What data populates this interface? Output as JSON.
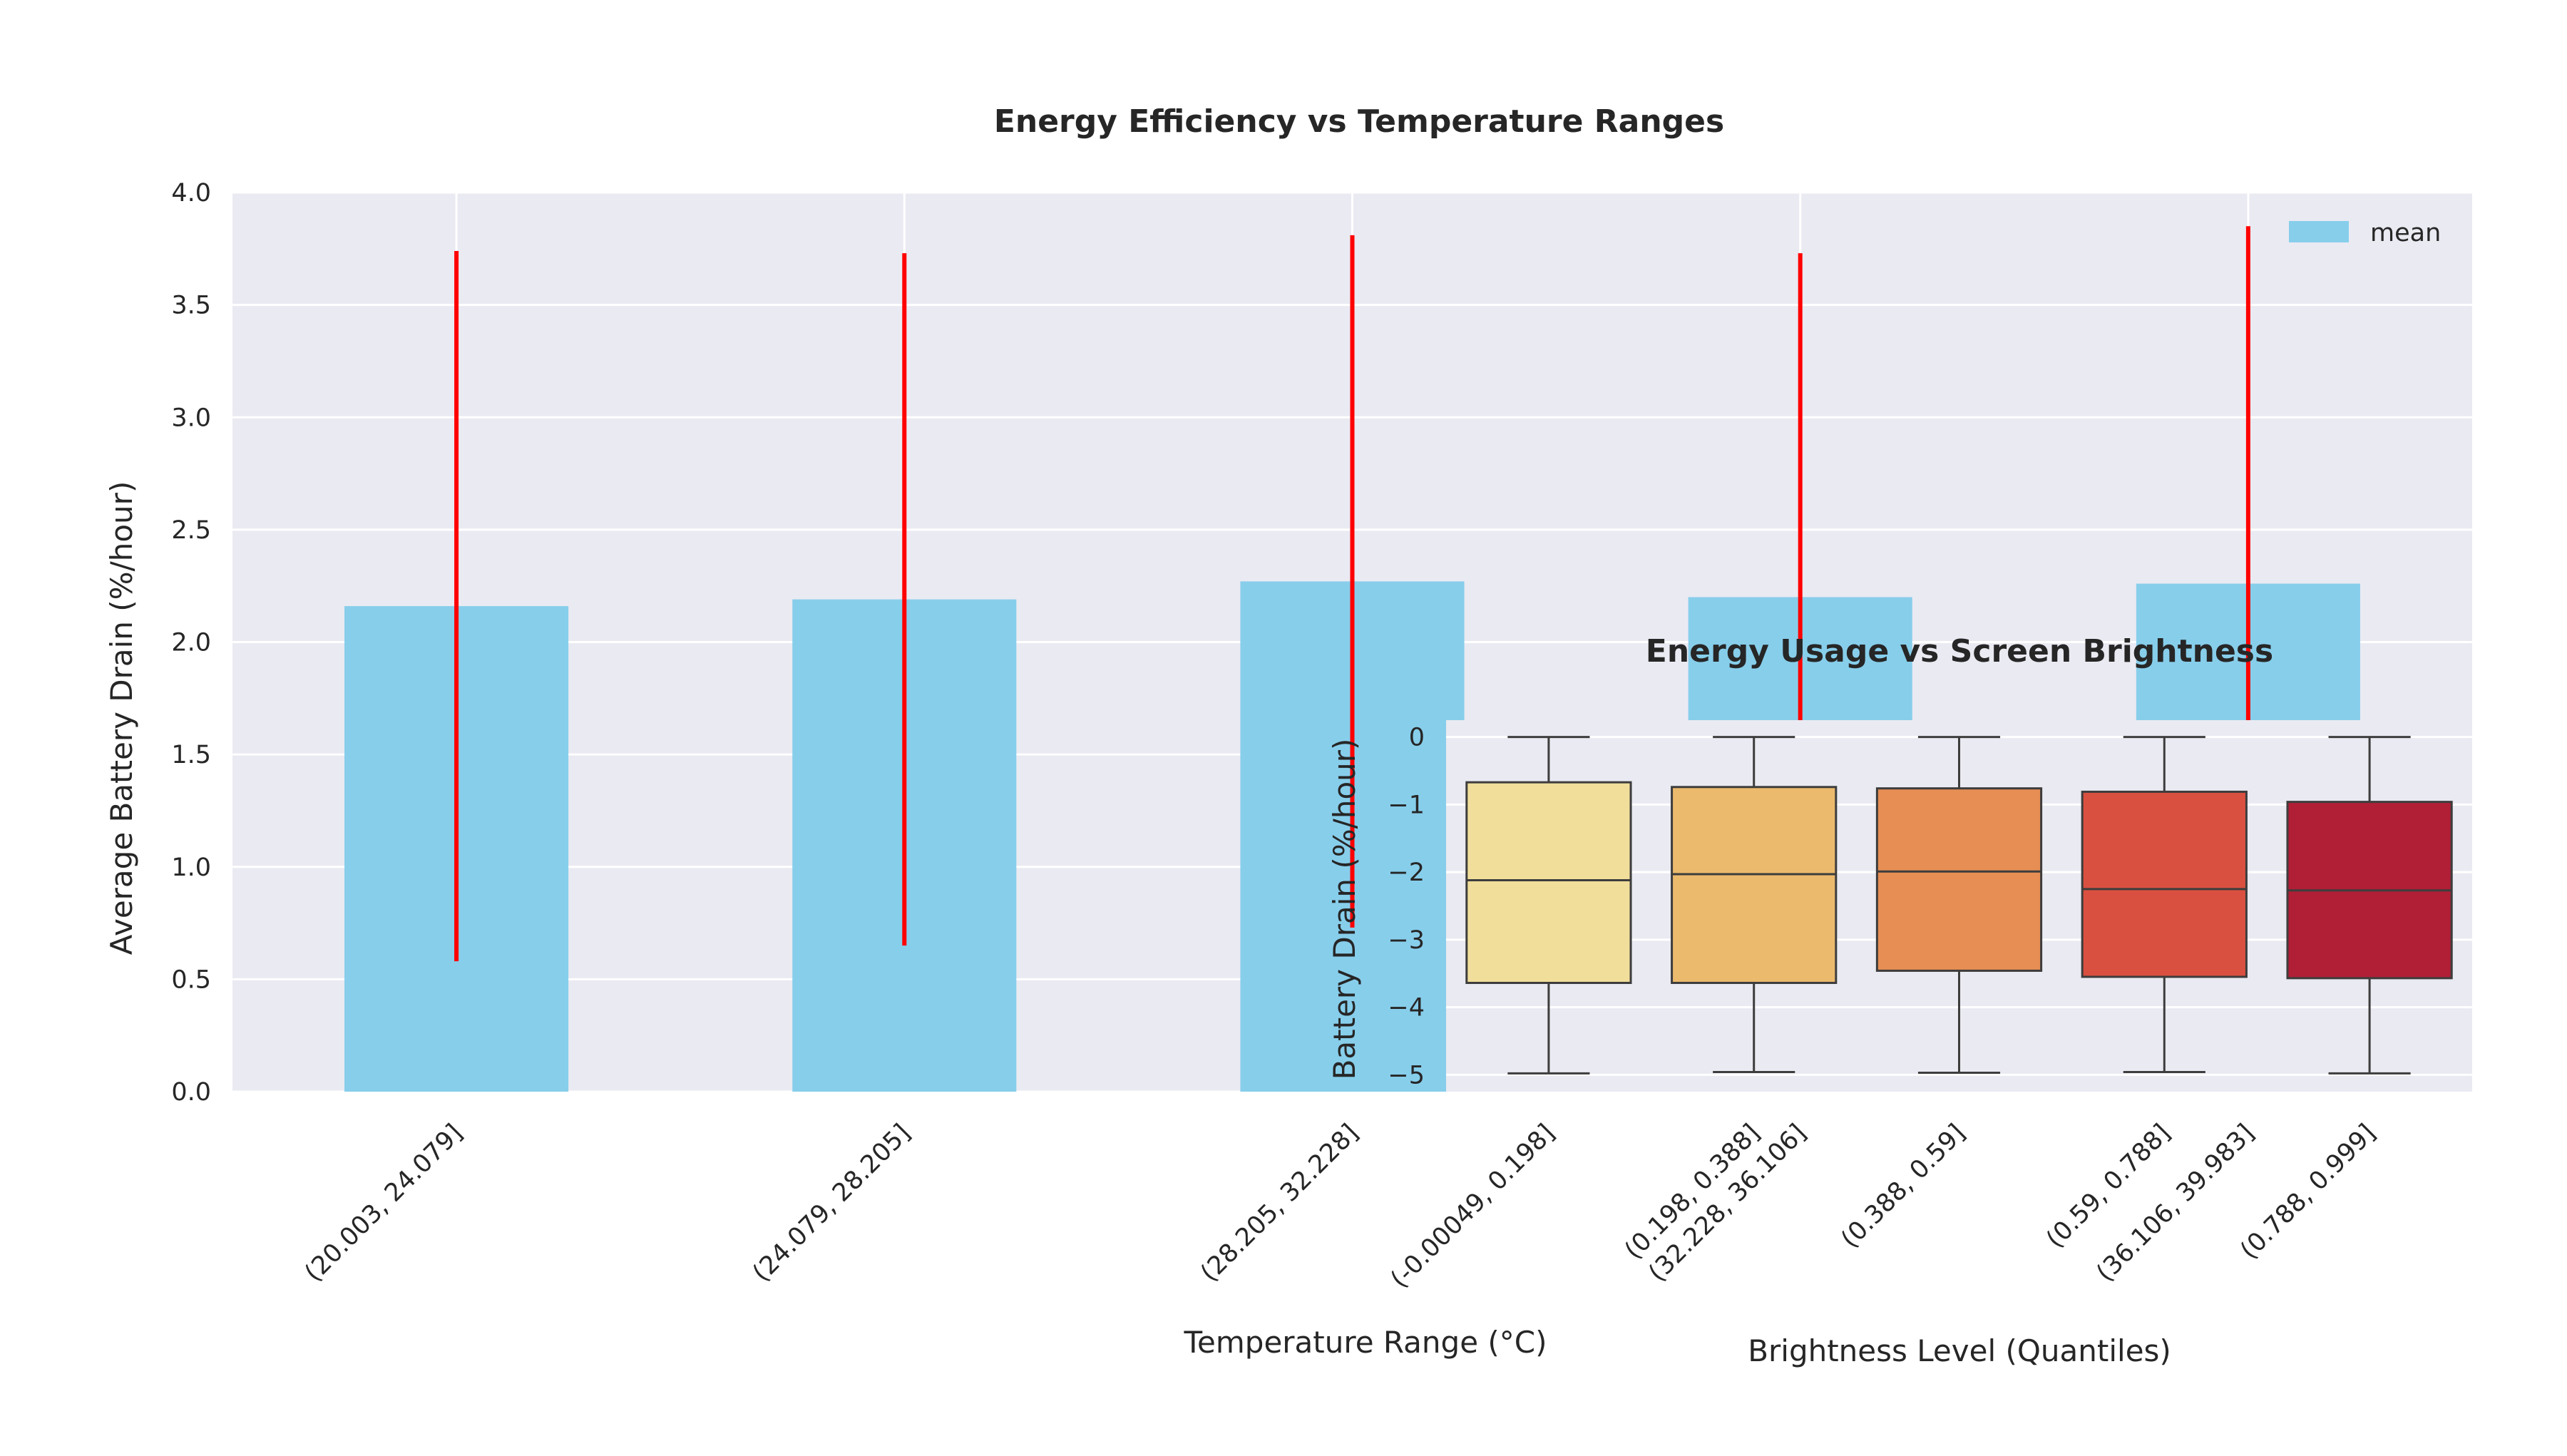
{
  "chart_data": [
    {
      "type": "bar",
      "title": "Energy Efficiency vs Temperature Ranges",
      "xlabel": "Temperature Range (°C)",
      "ylabel": "Average Battery Drain (%/hour)",
      "categories": [
        "(20.003, 24.079]",
        "(24.079, 28.205]",
        "(28.205, 32.228]",
        "(32.228, 36.106]",
        "(36.106, 39.983]"
      ],
      "series": [
        {
          "name": "mean",
          "values": [
            2.16,
            2.19,
            2.27,
            2.2,
            2.26
          ],
          "error": [
            1.58,
            1.54,
            1.54,
            1.53,
            1.59
          ],
          "color": "#87CEEB",
          "error_color": "#FF0000"
        }
      ],
      "ylim": [
        0,
        4.0
      ],
      "yticks": [
        "0.0",
        "0.5",
        "1.0",
        "1.5",
        "2.0",
        "2.5",
        "3.0",
        "3.5",
        "4.0"
      ],
      "grid": true,
      "legend": "top-right",
      "background": "#EAEAF2"
    },
    {
      "type": "box",
      "title": "Energy Usage vs Screen Brightness",
      "xlabel": "Brightness Level (Quantiles)",
      "ylabel": "Battery Drain (%/hour)",
      "categories": [
        "(-0.00049, 0.198]",
        "(0.198, 0.388]",
        "(0.388, 0.59]",
        "(0.59, 0.788]",
        "(0.788, 0.999]"
      ],
      "boxes": [
        {
          "min": -4.98,
          "q1": -3.64,
          "median": -2.12,
          "q3": -0.67,
          "max": 0.0,
          "color": "#F1DE9B"
        },
        {
          "min": -4.96,
          "q1": -3.64,
          "median": -2.03,
          "q3": -0.74,
          "max": 0.0,
          "color": "#ECBA6D"
        },
        {
          "min": -4.97,
          "q1": -3.46,
          "median": -1.99,
          "q3": -0.76,
          "max": 0.0,
          "color": "#E68E53"
        },
        {
          "min": -4.96,
          "q1": -3.55,
          "median": -2.25,
          "q3": -0.81,
          "max": 0.0,
          "color": "#DA5040"
        },
        {
          "min": -4.98,
          "q1": -3.57,
          "median": -2.27,
          "q3": -0.96,
          "max": 0.0,
          "color": "#B11F37"
        }
      ],
      "ylim": [
        -5.25,
        0.25
      ],
      "yticks": [
        "0",
        "−1",
        "−2",
        "−3",
        "−4",
        "−5"
      ],
      "grid": true,
      "background": "#EAEAF2"
    }
  ]
}
